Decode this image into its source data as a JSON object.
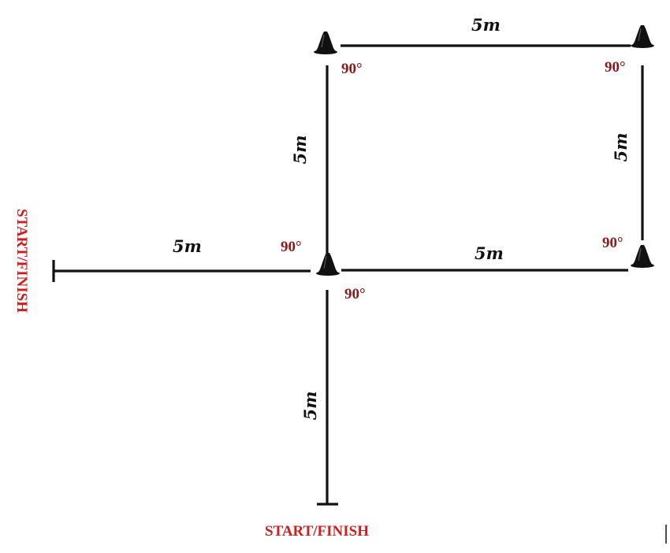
{
  "diagram": {
    "segments": {
      "top": "5m",
      "left_vertical": "5m",
      "right_vertical": "5m",
      "start_horizontal": "5m",
      "middle_horizontal": "5m",
      "start_vertical": "5m"
    },
    "angles": {
      "top_left": "90°",
      "top_right": "90°",
      "center_upper": "90°",
      "center_lower": "90°",
      "bottom_right": "90°"
    },
    "start_finish_left": "START/FINISH",
    "start_finish_bottom": "START/FINISH",
    "colors": {
      "line": "#111111",
      "angle_label": "#8b1a1a",
      "start_finish_label": "#cc1f1f",
      "cone": "#111111"
    },
    "icons": [
      "cone-icon"
    ]
  }
}
